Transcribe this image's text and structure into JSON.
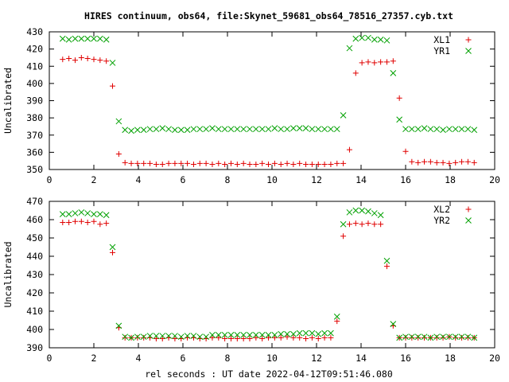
{
  "title": "HIRES continuum, obs64, file:Skynet_59681_obs64_78516_27357.cyb.txt",
  "xlabel": "rel seconds : UT date 2022-04-12T09:51:46.080",
  "chart_data": [
    {
      "type": "scatter",
      "ylabel": "Uncalibrated",
      "xlim": [
        0,
        20
      ],
      "ylim": [
        350,
        430
      ],
      "xticks": [
        0,
        2,
        4,
        6,
        8,
        10,
        12,
        14,
        16,
        18,
        20
      ],
      "yticks": [
        350,
        360,
        370,
        380,
        390,
        400,
        410,
        420,
        430
      ],
      "grid": false,
      "legend": "top-right",
      "x": [
        0.6,
        0.88,
        1.16,
        1.44,
        1.72,
        2.0,
        2.28,
        2.56,
        2.84,
        3.12,
        3.4,
        3.68,
        3.96,
        4.24,
        4.52,
        4.8,
        5.08,
        5.36,
        5.64,
        5.92,
        6.2,
        6.48,
        6.76,
        7.04,
        7.32,
        7.6,
        7.88,
        8.16,
        8.44,
        8.72,
        9.0,
        9.28,
        9.56,
        9.84,
        10.12,
        10.4,
        10.68,
        10.96,
        11.24,
        11.52,
        11.8,
        12.08,
        12.36,
        12.64,
        12.92,
        13.2,
        13.48,
        13.76,
        14.04,
        14.32,
        14.6,
        14.88,
        15.16,
        15.44,
        15.72,
        16.0,
        16.28,
        16.56,
        16.84,
        17.12,
        17.4,
        17.68,
        17.96,
        18.24,
        18.52,
        18.8,
        19.08
      ],
      "series": [
        {
          "name": "XL1",
          "color": "#e00000",
          "marker": "plus",
          "values": [
            414,
            414.5,
            413.5,
            415,
            414.5,
            414,
            413.5,
            413,
            398.5,
            359,
            354,
            353.5,
            353.5,
            353.5,
            353.5,
            353,
            353,
            353.5,
            353.5,
            353.5,
            353.5,
            353,
            353.5,
            353.5,
            353,
            353.5,
            353,
            353.5,
            353,
            353.5,
            353,
            353,
            353.5,
            353,
            353.5,
            353,
            353.5,
            353,
            353.5,
            353,
            353,
            353,
            353,
            353,
            353.5,
            353.5,
            361.5,
            406,
            412,
            412.5,
            412,
            412.5,
            412.5,
            413,
            391.5,
            360.5,
            354.5,
            354,
            354.5,
            354.5,
            354,
            354,
            353.5,
            354,
            354.5,
            354.5,
            354
          ]
        },
        {
          "name": "YR1",
          "color": "#00a000",
          "marker": "cross",
          "values": [
            426,
            425.5,
            426,
            426,
            426,
            426,
            426,
            425.5,
            412,
            378,
            373,
            372.5,
            373,
            373,
            373.5,
            373.5,
            374,
            373.5,
            373,
            373,
            373,
            373.5,
            373.5,
            373.5,
            374,
            373.5,
            373.5,
            373.5,
            373.5,
            373.5,
            373.5,
            373.5,
            373.5,
            373.5,
            374,
            373.5,
            373.5,
            374,
            374,
            374,
            373.5,
            373.5,
            373.5,
            373.5,
            373.5,
            381.5,
            420.5,
            426,
            426.5,
            426.5,
            425.5,
            425.5,
            425,
            406,
            379,
            373.5,
            373.5,
            373.5,
            374,
            373.5,
            373.5,
            373,
            373.5,
            373.5,
            373.5,
            373.5,
            373
          ]
        }
      ]
    },
    {
      "type": "scatter",
      "ylabel": "Uncalibrated",
      "xlim": [
        0,
        20
      ],
      "ylim": [
        390,
        470
      ],
      "xticks": [
        0,
        2,
        4,
        6,
        8,
        10,
        12,
        14,
        16,
        18,
        20
      ],
      "yticks": [
        390,
        400,
        410,
        420,
        430,
        440,
        450,
        460,
        470
      ],
      "grid": false,
      "legend": "top-right",
      "x": [
        0.6,
        0.88,
        1.16,
        1.44,
        1.72,
        2.0,
        2.28,
        2.56,
        2.84,
        3.12,
        3.4,
        3.68,
        3.96,
        4.24,
        4.52,
        4.8,
        5.08,
        5.36,
        5.64,
        5.92,
        6.2,
        6.48,
        6.76,
        7.04,
        7.32,
        7.6,
        7.88,
        8.16,
        8.44,
        8.72,
        9.0,
        9.28,
        9.56,
        9.84,
        10.12,
        10.4,
        10.68,
        10.96,
        11.24,
        11.52,
        11.8,
        12.08,
        12.36,
        12.64,
        12.92,
        13.2,
        13.48,
        13.76,
        14.04,
        14.32,
        14.6,
        14.88,
        15.16,
        15.44,
        15.72,
        16.0,
        16.28,
        16.56,
        16.84,
        17.12,
        17.4,
        17.68,
        17.96,
        18.24,
        18.52,
        18.8,
        19.08
      ],
      "series": [
        {
          "name": "XL2",
          "color": "#e00000",
          "marker": "plus",
          "values": [
            458.5,
            458.5,
            459,
            459,
            458.5,
            459,
            457.5,
            458,
            442,
            401,
            395.5,
            395.5,
            395.5,
            395.5,
            395.5,
            395,
            395,
            395.5,
            395,
            395,
            395.5,
            395.5,
            395,
            395,
            395.5,
            395.5,
            395,
            395,
            395,
            395,
            395,
            395.5,
            395,
            395.5,
            395.5,
            395.5,
            396,
            395.5,
            395.5,
            395,
            395.5,
            395,
            395.5,
            395.5,
            404.5,
            451,
            457.5,
            458,
            457.5,
            458,
            457.5,
            457.5,
            434.5,
            402,
            395.5,
            395.5,
            395.5,
            395.5,
            395.5,
            395.5,
            395.5,
            395.5,
            396,
            395.5,
            395.5,
            395.5,
            395.5
          ]
        },
        {
          "name": "YR2",
          "color": "#00a000",
          "marker": "cross",
          "values": [
            463,
            463,
            463.5,
            464,
            463.5,
            463,
            463,
            462.5,
            445,
            402,
            396,
            395.5,
            396,
            396,
            396.5,
            396.5,
            396.5,
            396.5,
            396.5,
            396,
            396.5,
            396.5,
            396,
            396,
            397,
            397,
            397,
            397,
            397,
            397,
            397,
            397,
            397,
            397,
            397,
            397.5,
            397.5,
            397.5,
            398,
            398,
            398,
            397.5,
            398,
            398,
            407,
            457.5,
            464,
            465,
            465,
            464.5,
            463.5,
            462.5,
            437.5,
            403,
            395.5,
            396,
            396,
            396,
            396,
            395.5,
            396,
            396,
            396,
            396,
            396,
            396,
            395.5
          ]
        }
      ]
    }
  ]
}
